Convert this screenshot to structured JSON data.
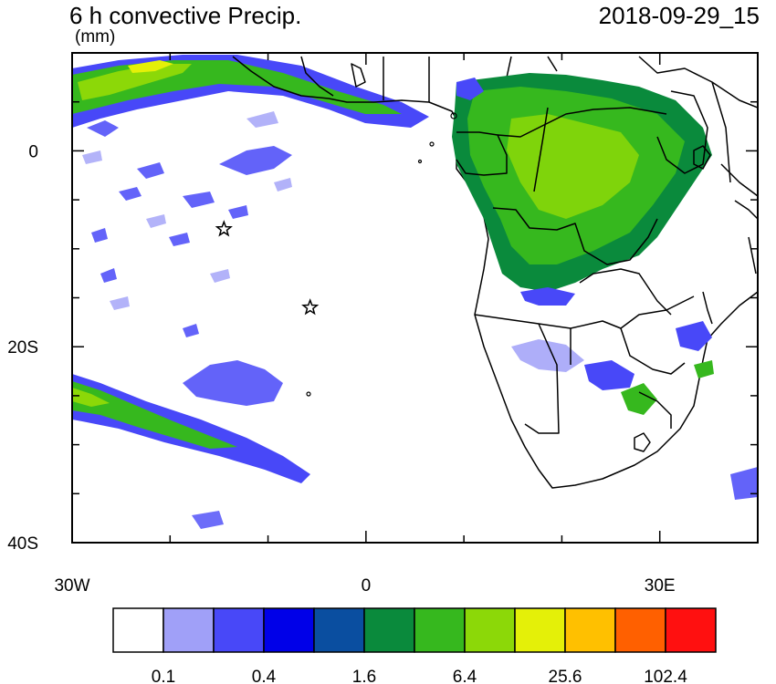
{
  "title": "6 h convective Precip.",
  "units": "(mm)",
  "datetime": "2018-09-29_15",
  "lon_labels": [
    {
      "lon": -30,
      "label": "30W"
    },
    {
      "lon": 0,
      "label": "0"
    },
    {
      "lon": 30,
      "label": "30E"
    }
  ],
  "lat_labels": [
    {
      "lat": 0,
      "label": "0"
    },
    {
      "lat": -20,
      "label": "20S"
    },
    {
      "lat": -40,
      "label": "40S"
    }
  ],
  "extent": {
    "lon_min": -30,
    "lon_max": 40,
    "lat_min": -40,
    "lat_max": 10
  },
  "colorbar": {
    "colors": [
      "#ffffff",
      "#a0a0f8",
      "#4848f8",
      "#0000e8",
      "#0a4ea0",
      "#0a8a3c",
      "#36b81e",
      "#8cd808",
      "#e4f008",
      "#ffc000",
      "#ff6000",
      "#ff1010"
    ],
    "labels": [
      {
        "after_box": 1,
        "text": "0.1"
      },
      {
        "after_box": 3,
        "text": "0.4"
      },
      {
        "after_box": 5,
        "text": "1.6"
      },
      {
        "after_box": 7,
        "text": "6.4"
      },
      {
        "after_box": 9,
        "text": "25.6"
      },
      {
        "after_box": 11,
        "text": "102.4"
      }
    ]
  },
  "markers": [
    {
      "name": "star-marker",
      "lon": -14.5,
      "lat": -8
    },
    {
      "name": "star-marker",
      "lon": -5.7,
      "lat": -16
    }
  ]
}
